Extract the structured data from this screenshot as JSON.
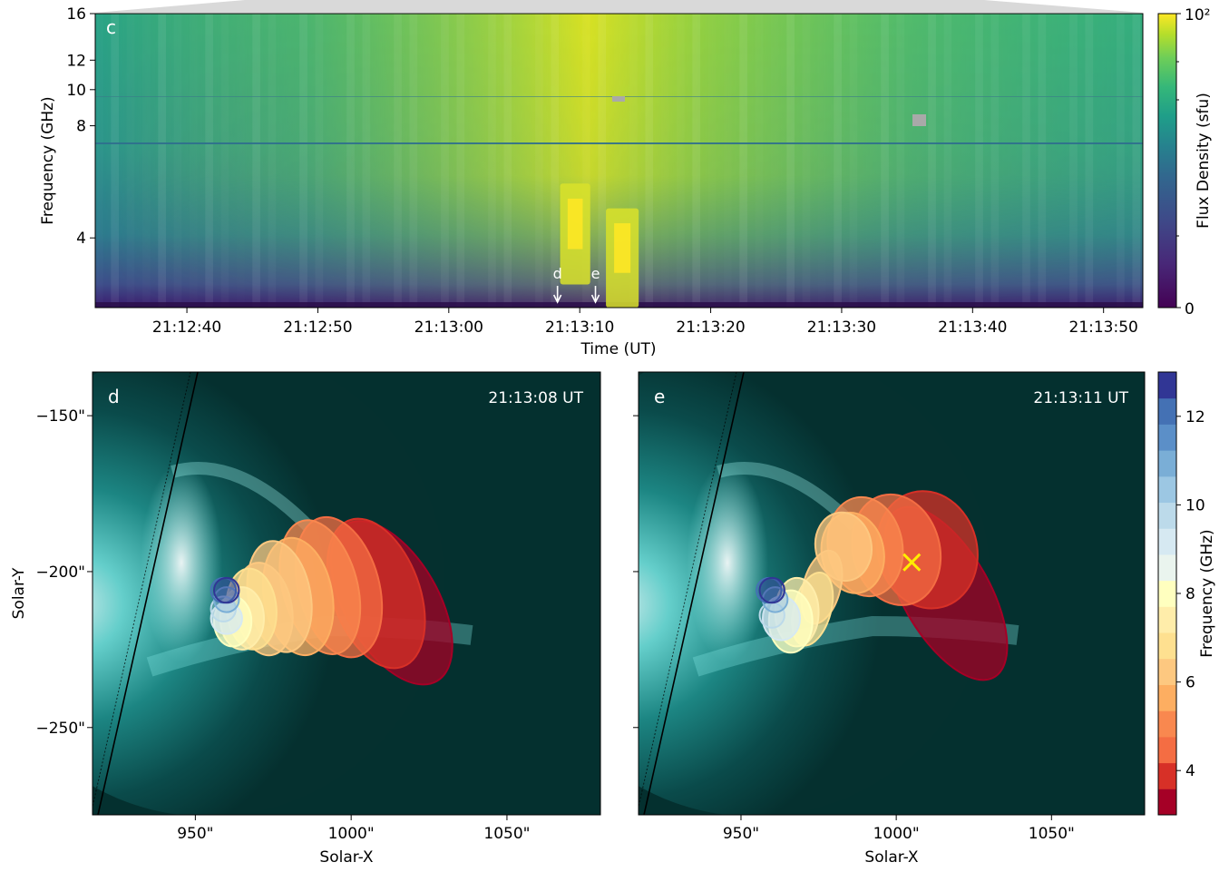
{
  "chart_data": [
    {
      "panel": "c",
      "type": "heatmap",
      "title": "",
      "xlabel": "Time (UT)",
      "ylabel": "Frequency (GHz)",
      "x_ticks": [
        "21:12:40",
        "21:12:50",
        "21:13:00",
        "21:13:10",
        "21:13:20",
        "21:13:30",
        "21:13:40",
        "21:13:50"
      ],
      "x_tick_seconds": [
        40,
        50,
        60,
        70,
        80,
        90,
        100,
        110
      ],
      "xlim_seconds": [
        33,
        113
      ],
      "y_ticks": [
        4,
        8,
        10,
        12,
        16
      ],
      "ylim": [
        2.6,
        16
      ],
      "yscale": "log",
      "colorbar": {
        "label": "Flux Density (sfu)",
        "scale": "log",
        "tick_labels": [
          "0",
          "10²"
        ],
        "colormap": "viridis"
      },
      "markers": [
        {
          "label": "d",
          "time": "21:13:08",
          "seconds": 68.3
        },
        {
          "label": "e",
          "time": "21:13:11",
          "seconds": 71.2
        }
      ],
      "bursts": [
        {
          "time_start_s": 68.5,
          "time_end_s": 70.8,
          "freq_low": 3.0,
          "freq_high": 5.6
        },
        {
          "time_start_s": 72.0,
          "time_end_s": 74.5,
          "freq_low": 2.6,
          "freq_high": 4.8
        }
      ]
    },
    {
      "panel": "d",
      "type": "scatter",
      "timestamp": "21:13:08 UT",
      "xlabel": "Solar-X",
      "ylabel": "Solar-Y",
      "x_ticks": [
        "950\"",
        "1000\"",
        "1050\""
      ],
      "x_tick_values": [
        950,
        1000,
        1050
      ],
      "y_ticks": [
        "−150\"",
        "−200\"",
        "−250\""
      ],
      "y_tick_values": [
        -150,
        -200,
        -250
      ],
      "xlim": [
        917,
        1080
      ],
      "ylim": [
        -278,
        -136
      ],
      "sources": [
        {
          "freq": 3.2,
          "x": 1013,
          "y": -210,
          "rx": 15,
          "ry": 29,
          "angle": -30
        },
        {
          "freq": 3.8,
          "x": 1008,
          "y": -207,
          "rx": 14,
          "ry": 25,
          "angle": -20
        },
        {
          "freq": 4.4,
          "x": 996,
          "y": -205,
          "rx": 13,
          "ry": 23,
          "angle": -15
        },
        {
          "freq": 5.0,
          "x": 990,
          "y": -205,
          "rx": 12,
          "ry": 22,
          "angle": -15
        },
        {
          "freq": 5.5,
          "x": 983,
          "y": -208,
          "rx": 11,
          "ry": 19,
          "angle": -10
        },
        {
          "freq": 6.0,
          "x": 977,
          "y": -208,
          "rx": 10,
          "ry": 18,
          "angle": -10
        },
        {
          "freq": 6.5,
          "x": 972,
          "y": -212,
          "rx": 9,
          "ry": 15,
          "angle": -10
        },
        {
          "freq": 7.0,
          "x": 968,
          "y": -212,
          "rx": 8,
          "ry": 13,
          "angle": -5
        },
        {
          "freq": 7.5,
          "x": 965,
          "y": -215,
          "rx": 7,
          "ry": 10,
          "angle": 0
        },
        {
          "freq": 8.0,
          "x": 962,
          "y": -216,
          "rx": 6,
          "ry": 8,
          "angle": 0
        },
        {
          "freq": 9.0,
          "x": 960,
          "y": -215,
          "rx": 5,
          "ry": 5,
          "angle": 0
        },
        {
          "freq": 10.0,
          "x": 959,
          "y": -212,
          "rx": 4,
          "ry": 4,
          "angle": 0
        },
        {
          "freq": 11.0,
          "x": 960,
          "y": -209,
          "rx": 4,
          "ry": 4,
          "angle": 0
        },
        {
          "freq": 12.0,
          "x": 959,
          "y": -206,
          "rx": 4,
          "ry": 4,
          "angle": 0
        },
        {
          "freq": 12.7,
          "x": 960,
          "y": -206,
          "rx": 4,
          "ry": 4,
          "angle": 0
        }
      ]
    },
    {
      "panel": "e",
      "type": "scatter",
      "timestamp": "21:13:11 UT",
      "xlabel": "Solar-X",
      "ylabel": "",
      "x_ticks": [
        "950\"",
        "1000\"",
        "1050\""
      ],
      "x_tick_values": [
        950,
        1000,
        1050
      ],
      "xlim": [
        917,
        1080
      ],
      "ylim": [
        -278,
        -136
      ],
      "cross_marker": {
        "x": 1005,
        "y": -197,
        "color": "#ffee00"
      },
      "sources": [
        {
          "freq": 3.2,
          "x": 1016,
          "y": -207,
          "rx": 14,
          "ry": 31,
          "angle": -30
        },
        {
          "freq": 3.8,
          "x": 1010,
          "y": -193,
          "rx": 16,
          "ry": 19,
          "angle": -15
        },
        {
          "freq": 4.4,
          "x": 1000,
          "y": -193,
          "rx": 14,
          "ry": 18,
          "angle": -15
        },
        {
          "freq": 5.0,
          "x": 990,
          "y": -192,
          "rx": 12,
          "ry": 16,
          "angle": -10
        },
        {
          "freq": 5.5,
          "x": 986,
          "y": -194,
          "rx": 10,
          "ry": 13,
          "angle": -10
        },
        {
          "freq": 6.0,
          "x": 983,
          "y": -192,
          "rx": 9,
          "ry": 11,
          "angle": -10
        },
        {
          "freq": 6.5,
          "x": 976,
          "y": -205,
          "rx": 6,
          "ry": 12,
          "angle": 15
        },
        {
          "freq": 7.0,
          "x": 973,
          "y": -212,
          "rx": 6,
          "ry": 12,
          "angle": 15
        },
        {
          "freq": 7.5,
          "x": 968,
          "y": -213,
          "rx": 7,
          "ry": 11,
          "angle": 0
        },
        {
          "freq": 8.0,
          "x": 966,
          "y": -216,
          "rx": 7,
          "ry": 10,
          "angle": 0
        },
        {
          "freq": 9.0,
          "x": 963,
          "y": -215,
          "rx": 6,
          "ry": 7,
          "angle": 0
        },
        {
          "freq": 10.0,
          "x": 960,
          "y": -214,
          "rx": 4,
          "ry": 4,
          "angle": 0
        },
        {
          "freq": 11.0,
          "x": 961,
          "y": -209,
          "rx": 4,
          "ry": 4,
          "angle": 0
        },
        {
          "freq": 12.0,
          "x": 959,
          "y": -206,
          "rx": 4,
          "ry": 4,
          "angle": 0
        },
        {
          "freq": 12.7,
          "x": 960,
          "y": -206,
          "rx": 4,
          "ry": 4,
          "angle": 0
        }
      ]
    }
  ],
  "frequency_colorbar": {
    "label": "Frequency (GHz)",
    "ticks": [
      4,
      6,
      8,
      10,
      12
    ],
    "range": [
      3,
      13
    ],
    "colors": [
      "#a50026",
      "#d73027",
      "#f46d43",
      "#f9884f",
      "#fdae61",
      "#fdc880",
      "#fee090",
      "#ffedaa",
      "#ffffbf",
      "#eaf4ee",
      "#d6e9f2",
      "#bcdaea",
      "#9cc7e3",
      "#7aaed6",
      "#5b8fc8",
      "#4471b4",
      "#313695"
    ]
  },
  "labels": {
    "panel_c": "c",
    "panel_d": "d",
    "panel_e": "e"
  }
}
